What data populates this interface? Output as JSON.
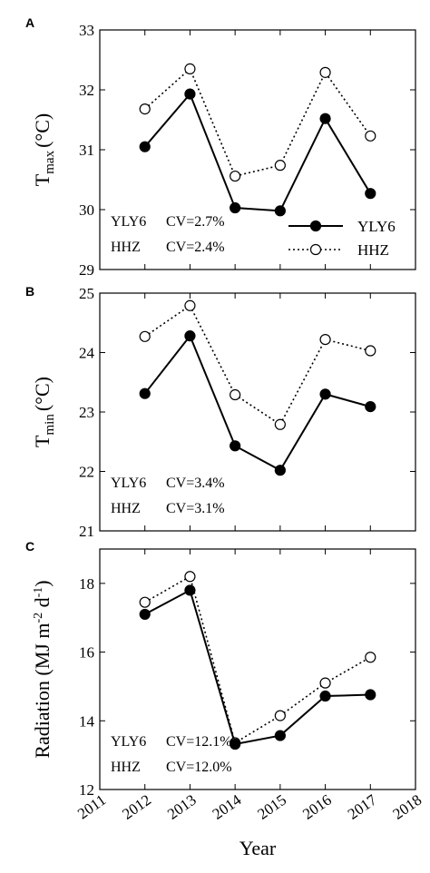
{
  "chart_data": [
    {
      "type": "line",
      "panel_label": "A",
      "ylabel_main": "T",
      "ylabel_sub": "max",
      "ylabel_unit": "(°C)",
      "ylim": [
        29,
        33
      ],
      "yticks": [
        "29",
        "30",
        "31",
        "32",
        "33"
      ],
      "x": [
        2012,
        2013,
        2014,
        2015,
        2016,
        2017
      ],
      "series": [
        {
          "name": "YLY6",
          "values": [
            31.05,
            31.93,
            30.03,
            29.98,
            31.52,
            30.27
          ],
          "marker": "filled",
          "line": "solid",
          "color": "#000000"
        },
        {
          "name": "HHZ",
          "values": [
            31.68,
            32.35,
            30.56,
            30.74,
            32.29,
            31.23
          ],
          "marker": "open",
          "line": "dotted",
          "color": "#000000"
        }
      ],
      "cv_lines": [
        {
          "name": "YLY6",
          "text": "CV=2.7%"
        },
        {
          "name": "HHZ",
          "text": "CV=2.4%"
        }
      ],
      "legend": {
        "placement": "bottom-right",
        "entries": [
          "YLY6",
          "HHZ"
        ]
      }
    },
    {
      "type": "line",
      "panel_label": "B",
      "ylabel_main": "T",
      "ylabel_sub": "min",
      "ylabel_unit": "(°C)",
      "ylim": [
        21,
        25
      ],
      "yticks": [
        "21",
        "22",
        "23",
        "24",
        "25"
      ],
      "x": [
        2012,
        2013,
        2014,
        2015,
        2016,
        2017
      ],
      "series": [
        {
          "name": "YLY6",
          "values": [
            23.31,
            24.28,
            22.43,
            22.02,
            23.3,
            23.09
          ],
          "marker": "filled",
          "line": "solid",
          "color": "#000000"
        },
        {
          "name": "HHZ",
          "values": [
            24.27,
            24.79,
            23.29,
            22.79,
            24.22,
            24.03
          ],
          "marker": "open",
          "line": "dotted",
          "color": "#000000"
        }
      ],
      "cv_lines": [
        {
          "name": "YLY6",
          "text": "CV=3.4%"
        },
        {
          "name": "HHZ",
          "text": "CV=3.1%"
        }
      ]
    },
    {
      "type": "line",
      "panel_label": "C",
      "ylabel_main": "Radiation (MJ m",
      "ylabel_sup1": "-2",
      "ylabel_mid": " d",
      "ylabel_sup2": "-1",
      "ylabel_end": ")",
      "ylim": [
        12,
        19
      ],
      "yticks": [
        "12",
        "14",
        "16",
        "18"
      ],
      "ytick_values": [
        12,
        14,
        16,
        18
      ],
      "xlim": [
        2011,
        2018
      ],
      "xticks": [
        "2011",
        "2012",
        "2013",
        "2014",
        "2015",
        "2016",
        "2017",
        "2018"
      ],
      "xlabel": "Year",
      "x": [
        2012,
        2013,
        2014,
        2015,
        2016,
        2017
      ],
      "series": [
        {
          "name": "YLY6",
          "values": [
            17.1,
            17.8,
            13.32,
            13.57,
            14.72,
            14.76
          ],
          "marker": "filled",
          "line": "solid",
          "color": "#000000"
        },
        {
          "name": "HHZ",
          "values": [
            17.45,
            18.2,
            13.36,
            14.15,
            15.1,
            15.85
          ],
          "marker": "open",
          "line": "dotted",
          "color": "#000000"
        }
      ],
      "cv_lines": [
        {
          "name": "YLY6",
          "text": "CV=12.1%"
        },
        {
          "name": "HHZ",
          "text": "CV=12.0%"
        }
      ]
    }
  ]
}
